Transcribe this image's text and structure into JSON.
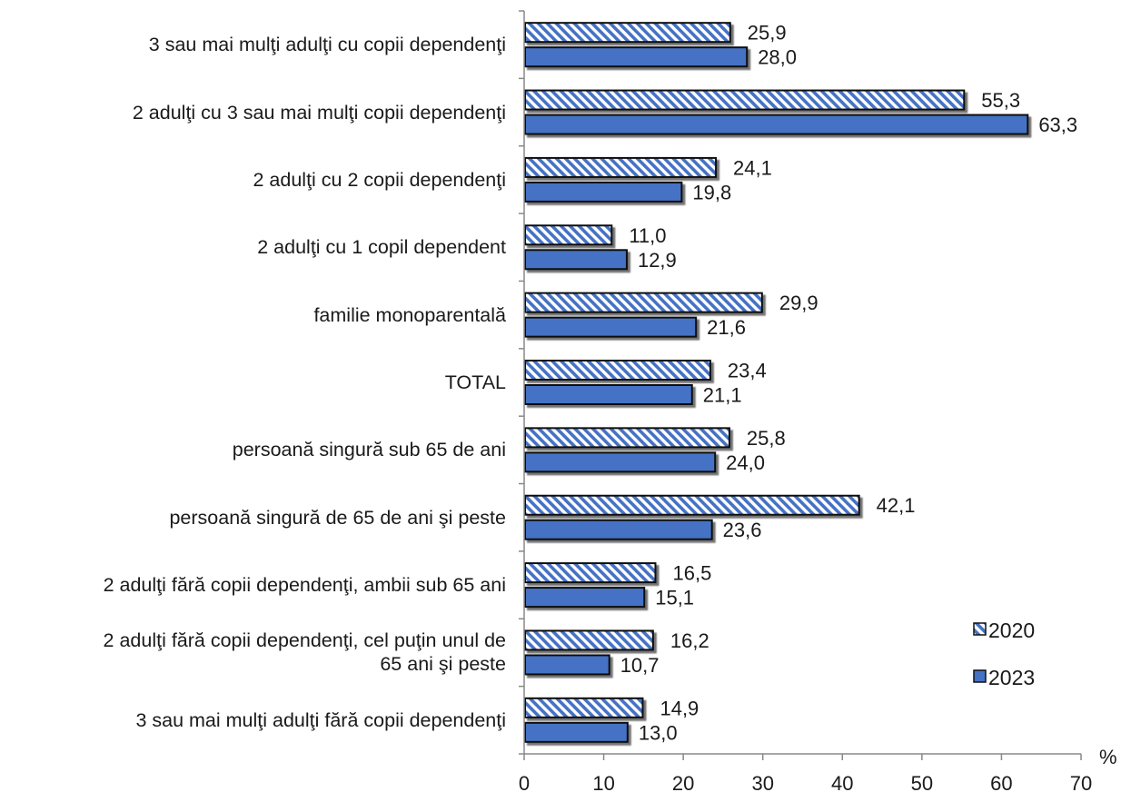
{
  "chart_data": {
    "type": "bar",
    "orientation": "horizontal",
    "categories": [
      "3 sau mai mulţi adulţi cu copii dependenţi",
      "2 adulţi cu 3 sau mai mulţi copii dependenţi",
      "2 adulţi cu 2 copii dependenţi",
      "2 adulţi cu 1 copil dependent",
      "familie monoparentală",
      "TOTAL",
      "persoană singură sub 65 de ani",
      "persoană singură de 65 de ani şi peste",
      "2 adulţi fără copii dependenţi, ambii sub 65 ani",
      "2 adulţi fără copii dependenţi, cel puţin unul de 65 ani şi peste",
      "3 sau mai mulţi adulţi fără copii dependenţi"
    ],
    "category_lines": [
      [
        "3 sau mai mulţi adulţi cu copii dependenţi"
      ],
      [
        "2 adulţi cu 3 sau mai mulţi copii dependenţi"
      ],
      [
        "2 adulţi cu 2 copii dependenţi"
      ],
      [
        "2 adulţi cu 1 copil dependent"
      ],
      [
        "familie monoparentală"
      ],
      [
        "TOTAL"
      ],
      [
        "persoană singură sub 65 de ani"
      ],
      [
        "persoană singură de 65 de ani şi peste"
      ],
      [
        "2 adulţi fără copii dependenţi, ambii sub 65 ani"
      ],
      [
        "2 adulţi fără copii dependenţi, cel puţin unul de",
        "65 ani şi peste"
      ],
      [
        "3 sau mai mulţi adulţi fără copii dependenţi"
      ]
    ],
    "series": [
      {
        "name": "2020",
        "values": [
          25.9,
          55.3,
          24.1,
          11.0,
          29.9,
          23.4,
          25.8,
          42.1,
          16.5,
          16.2,
          14.9
        ],
        "labels": [
          "25,9",
          "55,3",
          "24,1",
          "11,0",
          "29,9",
          "23,4",
          "25,8",
          "42,1",
          "16,5",
          "16,2",
          "14,9"
        ],
        "color": "#4472c4",
        "pattern": "diagonal-hatch"
      },
      {
        "name": "2023",
        "values": [
          28.0,
          63.3,
          19.8,
          12.9,
          21.6,
          21.1,
          24.0,
          23.6,
          15.1,
          10.7,
          13.0
        ],
        "labels": [
          "28,0",
          "63,3",
          "19,8",
          "12,9",
          "21,6",
          "21,1",
          "24,0",
          "23,6",
          "15,1",
          "10,7",
          "13,0"
        ],
        "color": "#4472c4",
        "pattern": "solid"
      }
    ],
    "xlim": [
      0,
      70
    ],
    "xticks": [
      "0",
      "10",
      "20",
      "30",
      "40",
      "50",
      "60",
      "70"
    ],
    "xlabel": "%",
    "grid": false,
    "legend_position": "bottom-right"
  }
}
